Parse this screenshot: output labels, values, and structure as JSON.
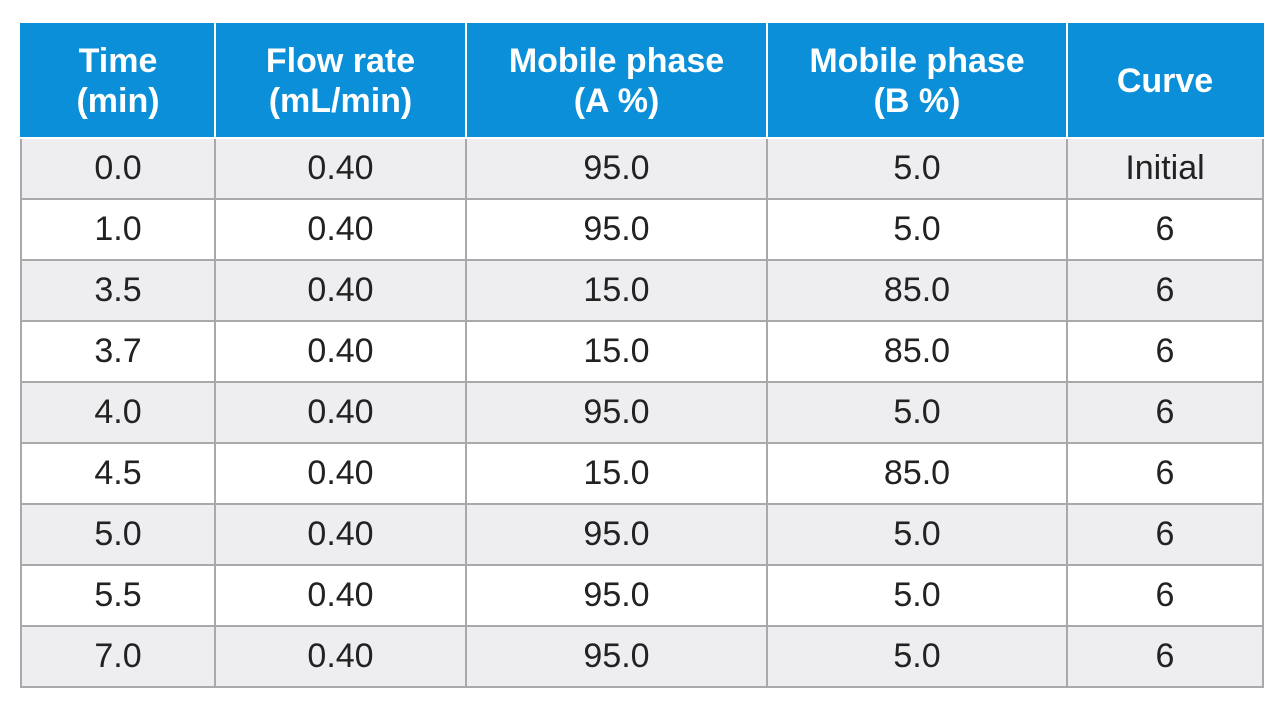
{
  "table": {
    "headers": [
      [
        "Time",
        "(min)"
      ],
      [
        "Flow rate",
        "(mL/min)"
      ],
      [
        "Mobile phase",
        "(A %)"
      ],
      [
        "Mobile phase",
        "(B %)"
      ],
      [
        "Curve"
      ]
    ],
    "rows": [
      [
        "0.0",
        "0.40",
        "95.0",
        "5.0",
        "Initial"
      ],
      [
        "1.0",
        "0.40",
        "95.0",
        "5.0",
        "6"
      ],
      [
        "3.5",
        "0.40",
        "15.0",
        "85.0",
        "6"
      ],
      [
        "3.7",
        "0.40",
        "15.0",
        "85.0",
        "6"
      ],
      [
        "4.0",
        "0.40",
        "95.0",
        "5.0",
        "6"
      ],
      [
        "4.5",
        "0.40",
        "15.0",
        "85.0",
        "6"
      ],
      [
        "5.0",
        "0.40",
        "95.0",
        "5.0",
        "6"
      ],
      [
        "5.5",
        "0.40",
        "95.0",
        "5.0",
        "6"
      ],
      [
        "7.0",
        "0.40",
        "95.0",
        "5.0",
        "6"
      ]
    ]
  },
  "colors": {
    "header_background": "#0a8fd8",
    "header_text": "#ffffff",
    "row_shaded": "#eeeef1",
    "row_plain": "#ffffff",
    "grid": "#a9a9ab"
  }
}
